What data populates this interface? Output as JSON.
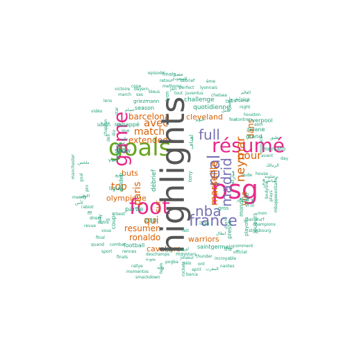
{
  "colors": {
    "gray": "#555555",
    "green": "#1b9e77",
    "orange": "#d95f02",
    "purple": "#7570b3",
    "magenta": "#e7298a",
    "lime": "#66a61e",
    "background": "#ffffff"
  },
  "words": [
    {
      "text": "highlights",
      "weight": 100,
      "color": "gray",
      "vertical": true
    },
    {
      "text": "goals",
      "weight": 60,
      "color": "lime",
      "vertical": false
    },
    {
      "text": "psg",
      "weight": 58,
      "color": "magenta",
      "vertical": false
    },
    {
      "text": "foot",
      "weight": 55,
      "color": "magenta",
      "vertical": false
    },
    {
      "text": "game",
      "weight": 52,
      "color": "magenta",
      "vertical": true
    },
    {
      "text": "résumé",
      "weight": 50,
      "color": "magenta",
      "vertical": false
    },
    {
      "text": "real",
      "weight": 42,
      "color": "purple",
      "vertical": true
    },
    {
      "text": "madrid",
      "weight": 38,
      "color": "purple",
      "vertical": true
    },
    {
      "text": "france",
      "weight": 36,
      "color": "purple",
      "vertical": false
    },
    {
      "text": "nba",
      "weight": 34,
      "color": "purple",
      "vertical": false
    },
    {
      "text": "full",
      "weight": 34,
      "color": "purple",
      "vertical": false
    },
    {
      "text": "neymar",
      "weight": 30,
      "color": "orange",
      "vertical": true
    },
    {
      "text": "marseille",
      "weight": 28,
      "color": "orange",
      "vertical": true
    },
    {
      "text": "paris",
      "weight": 26,
      "color": "orange",
      "vertical": true
    },
    {
      "text": "avec",
      "weight": 26,
      "color": "orange",
      "vertical": false
    },
    {
      "text": "pour",
      "weight": 26,
      "color": "orange",
      "vertical": false
    },
    {
      "text": "match",
      "weight": 25,
      "color": "orange",
      "vertical": false
    },
    {
      "text": "qui",
      "weight": 25,
      "color": "orange",
      "vertical": false
    },
    {
      "text": "top",
      "weight": 24,
      "color": "orange",
      "vertical": false
    },
    {
      "text": "dans",
      "weight": 22,
      "color": "orange",
      "vertical": true
    },
    {
      "text": "extended",
      "weight": 22,
      "color": "orange",
      "vertical": false
    },
    {
      "text": "barcelona",
      "weight": 22,
      "color": "orange",
      "vertical": false
    },
    {
      "text": "resumen",
      "weight": 22,
      "color": "orange",
      "vertical": false
    },
    {
      "text": "ronaldo",
      "weight": 22,
      "color": "orange",
      "vertical": false
    },
    {
      "text": "warriors",
      "weight": 20,
      "color": "orange",
      "vertical": false
    },
    {
      "text": "cleveland",
      "weight": 20,
      "color": "orange",
      "vertical": false
    },
    {
      "text": "cavaliers",
      "weight": 20,
      "color": "orange",
      "vertical": false
    },
    {
      "text": "buts",
      "weight": 20,
      "color": "orange",
      "vertical": false
    },
    {
      "text": "olympique",
      "weight": 20,
      "color": "orange",
      "vertical": false
    },
    {
      "text": "une",
      "weight": 19,
      "color": "orange",
      "vertical": true
    },
    {
      "text": "sur",
      "weight": 19,
      "color": "orange",
      "vertical": true
    },
    {
      "text": "zap",
      "weight": 18,
      "color": "green",
      "vertical": false
    },
    {
      "text": "show",
      "weight": 17,
      "color": "green",
      "vertical": false
    },
    {
      "text": "partie",
      "weight": 17,
      "color": "green",
      "vertical": false
    },
    {
      "text": "débrief",
      "weight": 16,
      "color": "green",
      "vertical": true
    },
    {
      "text": "quotidienne",
      "weight": 16,
      "color": "green",
      "vertical": false
    },
    {
      "text": "challenge",
      "weight": 16,
      "color": "green",
      "vertical": false
    },
    {
      "text": "season",
      "weight": 15,
      "color": "green",
      "vertical": false
    },
    {
      "text": "mbappé",
      "weight": 15,
      "color": "green",
      "vertical": false
    },
    {
      "text": "zidane",
      "weight": 15,
      "color": "green",
      "vertical": false
    },
    {
      "text": "grand",
      "weight": 15,
      "color": "green",
      "vertical": false
    },
    {
      "text": "liga",
      "weight": 15,
      "color": "green",
      "vertical": false
    },
    {
      "text": "messi",
      "weight": 15,
      "color": "green",
      "vertical": true
    },
    {
      "text": "first",
      "weight": 15,
      "color": "green",
      "vertical": true
    },
    {
      "text": "ligue",
      "weight": 15,
      "color": "green",
      "vertical": false
    },
    {
      "text": "liverpool",
      "weight": 15,
      "color": "green",
      "vertical": false
    },
    {
      "text": "football",
      "weight": 15,
      "color": "green",
      "vertical": false
    },
    {
      "text": "coupe",
      "weight": 14,
      "color": "green",
      "vertical": true
    },
    {
      "text": "saintgermain",
      "weight": 14,
      "color": "green",
      "vertical": false
    },
    {
      "text": "golden",
      "weight": 14,
      "color": "green",
      "vertical": true
    },
    {
      "text": "monde",
      "weight": 14,
      "color": "green",
      "vertical": true
    },
    {
      "text": "state",
      "weight": 14,
      "color": "green",
      "vertical": true
    },
    {
      "text": "mercato",
      "weight": 14,
      "color": "green",
      "vertical": false
    },
    {
      "text": "presse",
      "weight": 14,
      "color": "green",
      "vertical": true
    },
    {
      "text": "joueurs",
      "weight": 14,
      "color": "green",
      "vertical": true
    },
    {
      "text": "vwe",
      "weight": 13,
      "color": "green",
      "vertical": false
    },
    {
      "text": "may",
      "weight": 13,
      "color": "green",
      "vertical": false
    },
    {
      "text": "the",
      "weight": 13,
      "color": "green",
      "vertical": false
    },
    {
      "text": "live",
      "weight": 13,
      "color": "green",
      "vertical": true
    },
    {
      "text": "playoffs",
      "weight": 13,
      "color": "green",
      "vertical": true
    },
    {
      "text": "gros",
      "weight": 13,
      "color": "green",
      "vertical": false
    },
    {
      "text": "nice",
      "weight": 12,
      "color": "green",
      "vertical": false
    },
    {
      "text": "fait",
      "weight": 12,
      "color": "green",
      "vertical": false
    },
    {
      "text": "episode",
      "weight": 11,
      "color": "green",
      "vertical": false
    },
    {
      "text": "retour",
      "weight": 11,
      "color": "green",
      "vertical": false
    },
    {
      "text": "débrief",
      "weight": 11,
      "color": "green",
      "vertical": false
    },
    {
      "text": "ème",
      "weight": 11,
      "color": "green",
      "vertical": false
    },
    {
      "text": "cope",
      "weight": 11,
      "color": "green",
      "vertical": false
    },
    {
      "text": "melhores",
      "weight": 11,
      "color": "green",
      "vertical": false
    },
    {
      "text": "lyonnais",
      "weight": 11,
      "color": "green",
      "vertical": false
    },
    {
      "text": "perfect",
      "weight": 11,
      "color": "green",
      "vertical": false
    },
    {
      "text": "jan",
      "weight": 11,
      "color": "green",
      "vertical": false
    },
    {
      "text": "victoire",
      "weight": 11,
      "color": "green",
      "vertical": false
    },
    {
      "text": "bayern",
      "weight": 11,
      "color": "green",
      "vertical": false
    },
    {
      "text": "bleus",
      "weight": 11,
      "color": "green",
      "vertical": false
    },
    {
      "text": "tout",
      "weight": 11,
      "color": "green",
      "vertical": false
    },
    {
      "text": "juventus",
      "weight": 11,
      "color": "green",
      "vertical": false
    },
    {
      "text": "chelsea",
      "weight": 11,
      "color": "green",
      "vertical": false
    },
    {
      "text": "march",
      "weight": 11,
      "color": "green",
      "vertical": false
    },
    {
      "text": "sas",
      "weight": 11,
      "color": "green",
      "vertical": false
    },
    {
      "text": "arsenal",
      "weight": 11,
      "color": "green",
      "vertical": false
    },
    {
      "text": "griezmann",
      "weight": 12,
      "color": "green",
      "vertical": false
    },
    {
      "text": "lens",
      "weight": 11,
      "color": "green",
      "vertical": false
    },
    {
      "text": "talk",
      "weight": 11,
      "color": "green",
      "vertical": false
    },
    {
      "text": "lyon",
      "weight": 12,
      "color": "green",
      "vertical": true
    },
    {
      "text": "night",
      "weight": 11,
      "color": "green",
      "vertical": false
    },
    {
      "text": "houston",
      "weight": 11,
      "color": "green",
      "vertical": false
    },
    {
      "text": "vidéo",
      "weight": 11,
      "color": "green",
      "vertical": false
    },
    {
      "text": "star",
      "weight": 11,
      "color": "green",
      "vertical": true
    },
    {
      "text": "feat",
      "weight": 11,
      "color": "green",
      "vertical": false
    },
    {
      "text": "contre",
      "weight": 11,
      "color": "green",
      "vertical": false
    },
    {
      "text": "asm",
      "weight": 11,
      "color": "green",
      "vertical": false
    },
    {
      "text": "chapron",
      "weight": 11,
      "color": "green",
      "vertical": true
    },
    {
      "text": "feb",
      "weight": 11,
      "color": "green",
      "vertical": false
    },
    {
      "text": "que",
      "weight": 11,
      "color": "green",
      "vertical": false
    },
    {
      "text": "lebron",
      "weight": 11,
      "color": "green",
      "vertical": false
    },
    {
      "text": "dell",
      "weight": 11,
      "color": "green",
      "vertical": true
    },
    {
      "text": "dio",
      "weight": 11,
      "color": "green",
      "vertical": true
    },
    {
      "text": "avant",
      "weight": 11,
      "color": "green",
      "vertical": false
    },
    {
      "text": "monaco",
      "weight": 11,
      "color": "green",
      "vertical": true
    },
    {
      "text": "vestiaire",
      "weight": 11,
      "color": "green",
      "vertical": true
    },
    {
      "text": "day",
      "weight": 11,
      "color": "green",
      "vertical": false
    },
    {
      "text": "manchester",
      "weight": 11,
      "color": "green",
      "vertical": true
    },
    {
      "text": "goal",
      "weight": 11,
      "color": "green",
      "vertical": true
    },
    {
      "text": "pro",
      "weight": 11,
      "color": "green",
      "vertical": true
    },
    {
      "text": "bodyline",
      "weight": 11,
      "color": "green",
      "vertical": true
    },
    {
      "text": "plays",
      "weight": 11,
      "color": "green",
      "vertical": true
    },
    {
      "text": "mbappe",
      "weight": 11,
      "color": "green",
      "vertical": true
    },
    {
      "text": "mendy",
      "weight": 11,
      "color": "green",
      "vertical": true
    },
    {
      "text": "rabiot",
      "weight": 11,
      "color": "green",
      "vertical": false
    },
    {
      "text": "revue",
      "weight": 11,
      "color": "green",
      "vertical": false
    },
    {
      "text": "notre",
      "weight": 11,
      "color": "green",
      "vertical": false
    },
    {
      "text": "vous",
      "weight": 11,
      "color": "green",
      "vertical": false
    },
    {
      "text": "final",
      "weight": 11,
      "color": "green",
      "vertical": false
    },
    {
      "text": "quand",
      "weight": 11,
      "color": "green",
      "vertical": false
    },
    {
      "text": "combat",
      "weight": 11,
      "color": "green",
      "vertical": false
    },
    {
      "text": "sport",
      "weight": 11,
      "color": "green",
      "vertical": false
    },
    {
      "text": "rennes",
      "weight": 11,
      "color": "green",
      "vertical": false
    },
    {
      "text": "finals",
      "weight": 11,
      "color": "green",
      "vertical": false
    },
    {
      "text": "rallye",
      "weight": 11,
      "color": "green",
      "vertical": false
    },
    {
      "text": "momentos",
      "weight": 11,
      "color": "green",
      "vertical": false
    },
    {
      "text": "smackdown",
      "weight": 11,
      "color": "green",
      "vertical": false
    },
    {
      "text": "deschamps",
      "weight": 11,
      "color": "green",
      "vertical": false
    },
    {
      "text": "pogba",
      "weight": 11,
      "color": "green",
      "vertical": false
    },
    {
      "text": "vélo",
      "weight": 11,
      "color": "green",
      "vertical": false
    },
    {
      "text": "joueur",
      "weight": 11,
      "color": "green",
      "vertical": false
    },
    {
      "text": "ont",
      "weight": 11,
      "color": "green",
      "vertical": false
    },
    {
      "text": "thunder",
      "weight": 11,
      "color": "green",
      "vertical": false
    },
    {
      "text": "april",
      "weight": 11,
      "color": "green",
      "vertical": false
    },
    {
      "text": "stars",
      "weight": 11,
      "color": "green",
      "vertical": false
    },
    {
      "text": "nantes",
      "weight": 11,
      "color": "green",
      "vertical": false
    },
    {
      "text": "barca",
      "weight": 11,
      "color": "green",
      "vertical": false
    },
    {
      "text": "officiel",
      "weight": 11,
      "color": "green",
      "vertical": false
    },
    {
      "text": "incroyable",
      "weight": 11,
      "color": "green",
      "vertical": false
    },
    {
      "text": "comment",
      "weight": 11,
      "color": "green",
      "vertical": false
    },
    {
      "text": "paristurf",
      "weight": 11,
      "color": "green",
      "vertical": false
    },
    {
      "text": "strasbourg",
      "weight": 11,
      "color": "green",
      "vertical": false
    },
    {
      "text": "champions",
      "weight": 11,
      "color": "green",
      "vertical": false
    },
    {
      "text": "rockets",
      "weight": 11,
      "color": "green",
      "vertical": false
    },
    {
      "text": "team",
      "weight": 11,
      "color": "green",
      "vertical": true
    },
    {
      "text": "house",
      "weight": 11,
      "color": "green",
      "vertical": true
    },
    {
      "text": "dude",
      "weight": 11,
      "color": "green",
      "vertical": false
    },
    {
      "text": "mon",
      "weight": 11,
      "color": "green",
      "vertical": false
    },
    {
      "text": "best",
      "weight": 11,
      "color": "green",
      "vertical": false
    },
    {
      "text": "vs",
      "weight": 11,
      "color": "green",
      "vertical": false
    },
    {
      "text": "fff",
      "weight": 11,
      "color": "green",
      "vertical": false
    },
    {
      "text": "jatty",
      "weight": 11,
      "color": "green",
      "vertical": false
    },
    {
      "text": "direct",
      "weight": 11,
      "color": "green",
      "vertical": true
    },
    {
      "text": "tony",
      "weight": 11,
      "color": "green",
      "vertical": false
    },
    {
      "text": "finale",
      "weight": 11,
      "color": "green",
      "vertical": true
    },
    {
      "text": "مصر",
      "weight": 11,
      "color": "green",
      "vertical": false
    },
    {
      "text": "اهداف",
      "weight": 11,
      "color": "green",
      "vertical": false
    },
    {
      "text": "مباراة",
      "weight": 12,
      "color": "green",
      "vertical": true
    },
    {
      "text": "الاهلي",
      "weight": 12,
      "color": "green",
      "vertical": true
    },
    {
      "text": "كأس",
      "weight": 11,
      "color": "green",
      "vertical": false
    },
    {
      "text": "ملخص",
      "weight": 11,
      "color": "green",
      "vertical": false
    },
    {
      "text": "الدوري",
      "weight": 11,
      "color": "green",
      "vertical": false
    },
    {
      "text": "العالم",
      "weight": 11,
      "color": "green",
      "vertical": true
    },
    {
      "text": "الزمالك",
      "weight": 11,
      "color": "green",
      "vertical": false
    },
    {
      "text": "مباشر",
      "weight": 11,
      "color": "green",
      "vertical": false
    },
    {
      "text": "جميع",
      "weight": 11,
      "color": "green",
      "vertical": false
    },
    {
      "text": "هدف",
      "weight": 11,
      "color": "green",
      "vertical": false
    },
    {
      "text": "برشلونة",
      "weight": 11,
      "color": "green",
      "vertical": true
    },
    {
      "text": "ريال",
      "weight": 11,
      "color": "green",
      "vertical": false
    },
    {
      "text": "مدريد",
      "weight": 11,
      "color": "green",
      "vertical": false
    },
    {
      "text": "السعودي",
      "weight": 11,
      "color": "green",
      "vertical": false
    },
    {
      "text": "المغرب",
      "weight": 11,
      "color": "green",
      "vertical": false
    },
    {
      "text": "اليوم",
      "weight": 11,
      "color": "green",
      "vertical": false
    },
    {
      "text": "تعليق",
      "weight": 11,
      "color": "green",
      "vertical": false
    },
    {
      "text": "عالية",
      "weight": 11,
      "color": "green",
      "vertical": false
    },
    {
      "text": "ودية",
      "weight": 11,
      "color": "green",
      "vertical": false
    },
    {
      "text": "بجودة",
      "weight": 11,
      "color": "green",
      "vertical": false
    },
    {
      "text": "ليفربول",
      "weight": 11,
      "color": "green",
      "vertical": false
    },
    {
      "text": "حصريا",
      "weight": 11,
      "color": "green",
      "vertical": false
    },
    {
      "text": "ابطال",
      "weight": 11,
      "color": "green",
      "vertical": false
    },
    {
      "text": "اوروبا",
      "weight": 11,
      "color": "green",
      "vertical": true
    },
    {
      "text": "الجزائر",
      "weight": 11,
      "color": "green",
      "vertical": false
    },
    {
      "text": "كامل",
      "weight": 11,
      "color": "green",
      "vertical": false
    },
    {
      "text": "عصام",
      "weight": 11,
      "color": "green",
      "vertical": false
    },
    {
      "text": "نهائي",
      "weight": 11,
      "color": "green",
      "vertical": false
    },
    {
      "text": "تونس",
      "weight": 11,
      "color": "green",
      "vertical": false
    }
  ]
}
